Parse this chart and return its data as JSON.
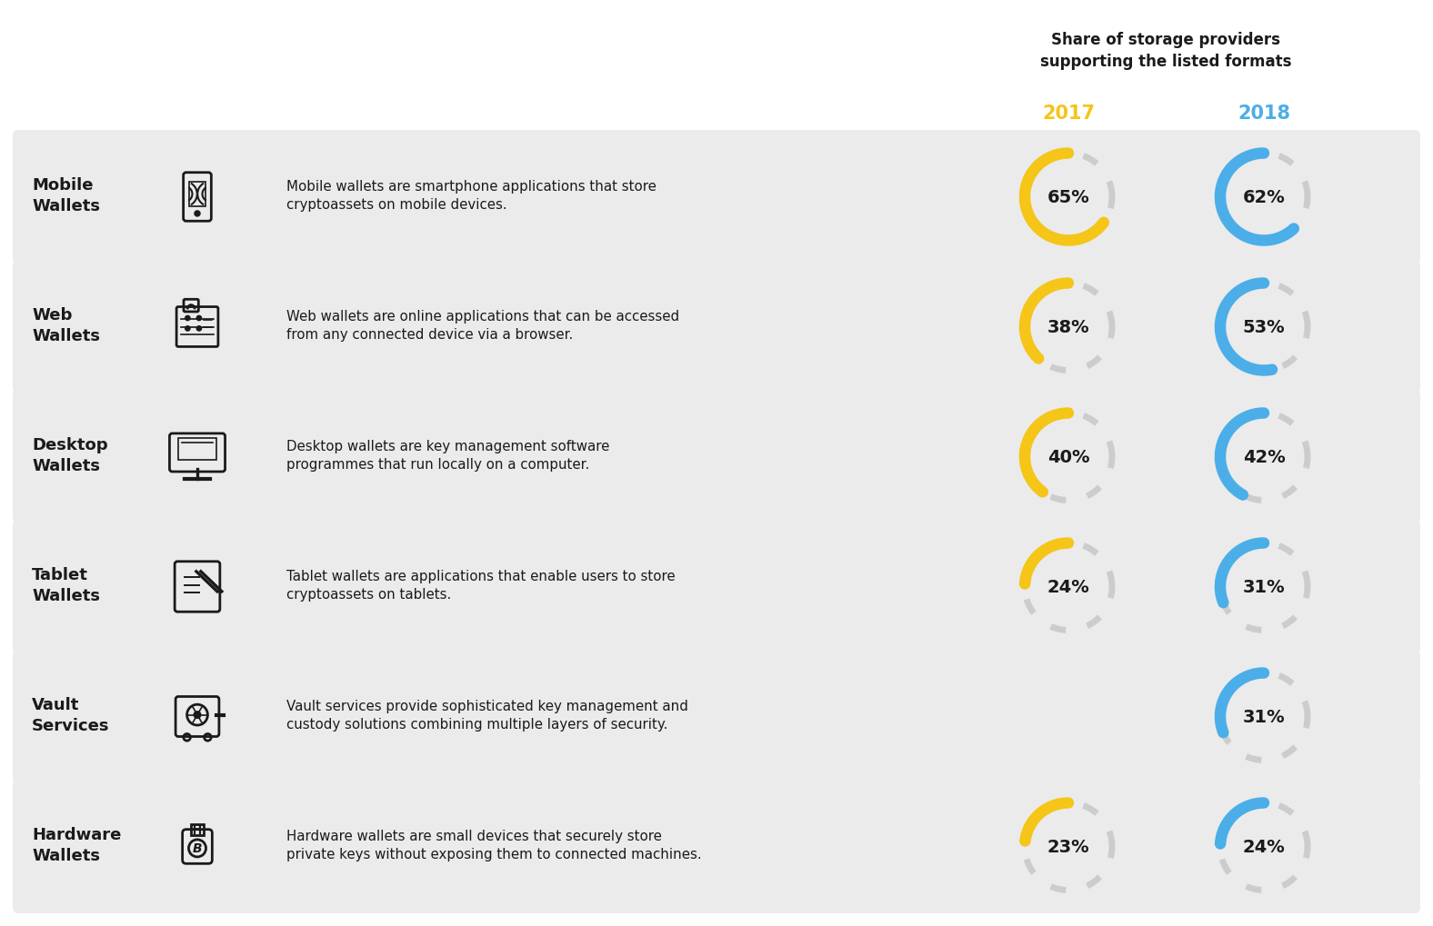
{
  "background_color": "#FFFFFF",
  "row_bg_color": "#EBEBEB",
  "text_color": "#1A1A1A",
  "year_2017_color": "#F5C518",
  "year_2018_color": "#4BAEE8",
  "donut_bg_color": "#CCCCCC",
  "header_line1": "Share of storage providers",
  "header_line2": "supporting the listed formats",
  "rows": [
    {
      "title": "Mobile\nWallets",
      "description": "Mobile wallets are smartphone applications that store\ncryptoassets on mobile devices.",
      "pct_2017": 65,
      "pct_2018": 62,
      "has_2017": true,
      "icon": "mobile"
    },
    {
      "title": "Web\nWallets",
      "description": "Web wallets are online applications that can be accessed\nfrom any connected device via a browser.",
      "pct_2017": 38,
      "pct_2018": 53,
      "has_2017": true,
      "icon": "web"
    },
    {
      "title": "Desktop\nWallets",
      "description": "Desktop wallets are key management software\nprogrammes that run locally on a computer.",
      "pct_2017": 40,
      "pct_2018": 42,
      "has_2017": true,
      "icon": "desktop"
    },
    {
      "title": "Tablet\nWallets",
      "description": "Tablet wallets are applications that enable users to store\ncryptoassets on tablets.",
      "pct_2017": 24,
      "pct_2018": 31,
      "has_2017": true,
      "icon": "tablet"
    },
    {
      "title": "Vault\nServices",
      "description": "Vault services provide sophisticated key management and\ncustody solutions combining multiple layers of security.",
      "pct_2017": 0,
      "pct_2018": 31,
      "has_2017": false,
      "icon": "vault"
    },
    {
      "title": "Hardware\nWallets",
      "description": "Hardware wallets are small devices that securely store\nprivate keys without exposing them to connected machines.",
      "pct_2017": 23,
      "pct_2018": 24,
      "has_2017": true,
      "icon": "hardware"
    }
  ]
}
